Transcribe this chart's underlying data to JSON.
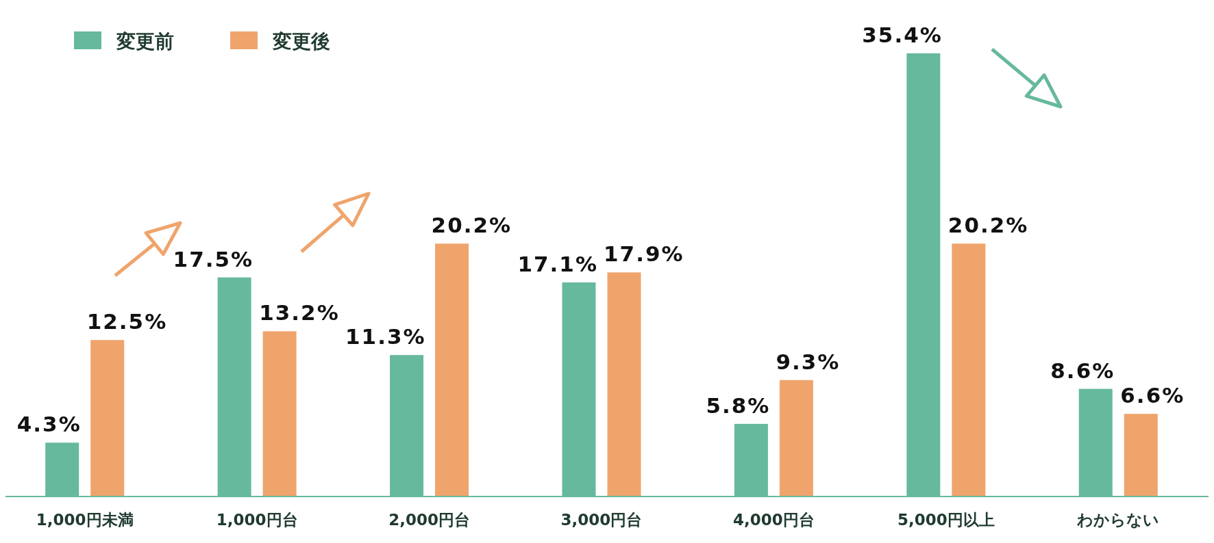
{
  "chart_data": {
    "type": "bar",
    "categories": [
      "1,000円未満",
      "1,000円台",
      "2,000円台",
      "3,000円台",
      "4,000円台",
      "5,000円以上",
      "わからない"
    ],
    "series": [
      {
        "name": "変更前",
        "color": "#66b99c",
        "values": [
          4.3,
          17.5,
          11.3,
          17.1,
          5.8,
          35.4,
          8.6
        ],
        "value_labels": [
          "4.3%",
          "17.5%",
          "11.3%",
          "17.1%",
          "5.8%",
          "35.4%",
          "8.6%"
        ]
      },
      {
        "name": "変更後",
        "color": "#efa46c",
        "values": [
          12.5,
          13.2,
          20.2,
          17.9,
          9.3,
          20.2,
          6.6
        ],
        "value_labels": [
          "12.5%",
          "13.2%",
          "20.2%",
          "17.9%",
          "9.3%",
          "20.2%",
          "6.6%"
        ]
      }
    ],
    "legend": "top left"
  }
}
